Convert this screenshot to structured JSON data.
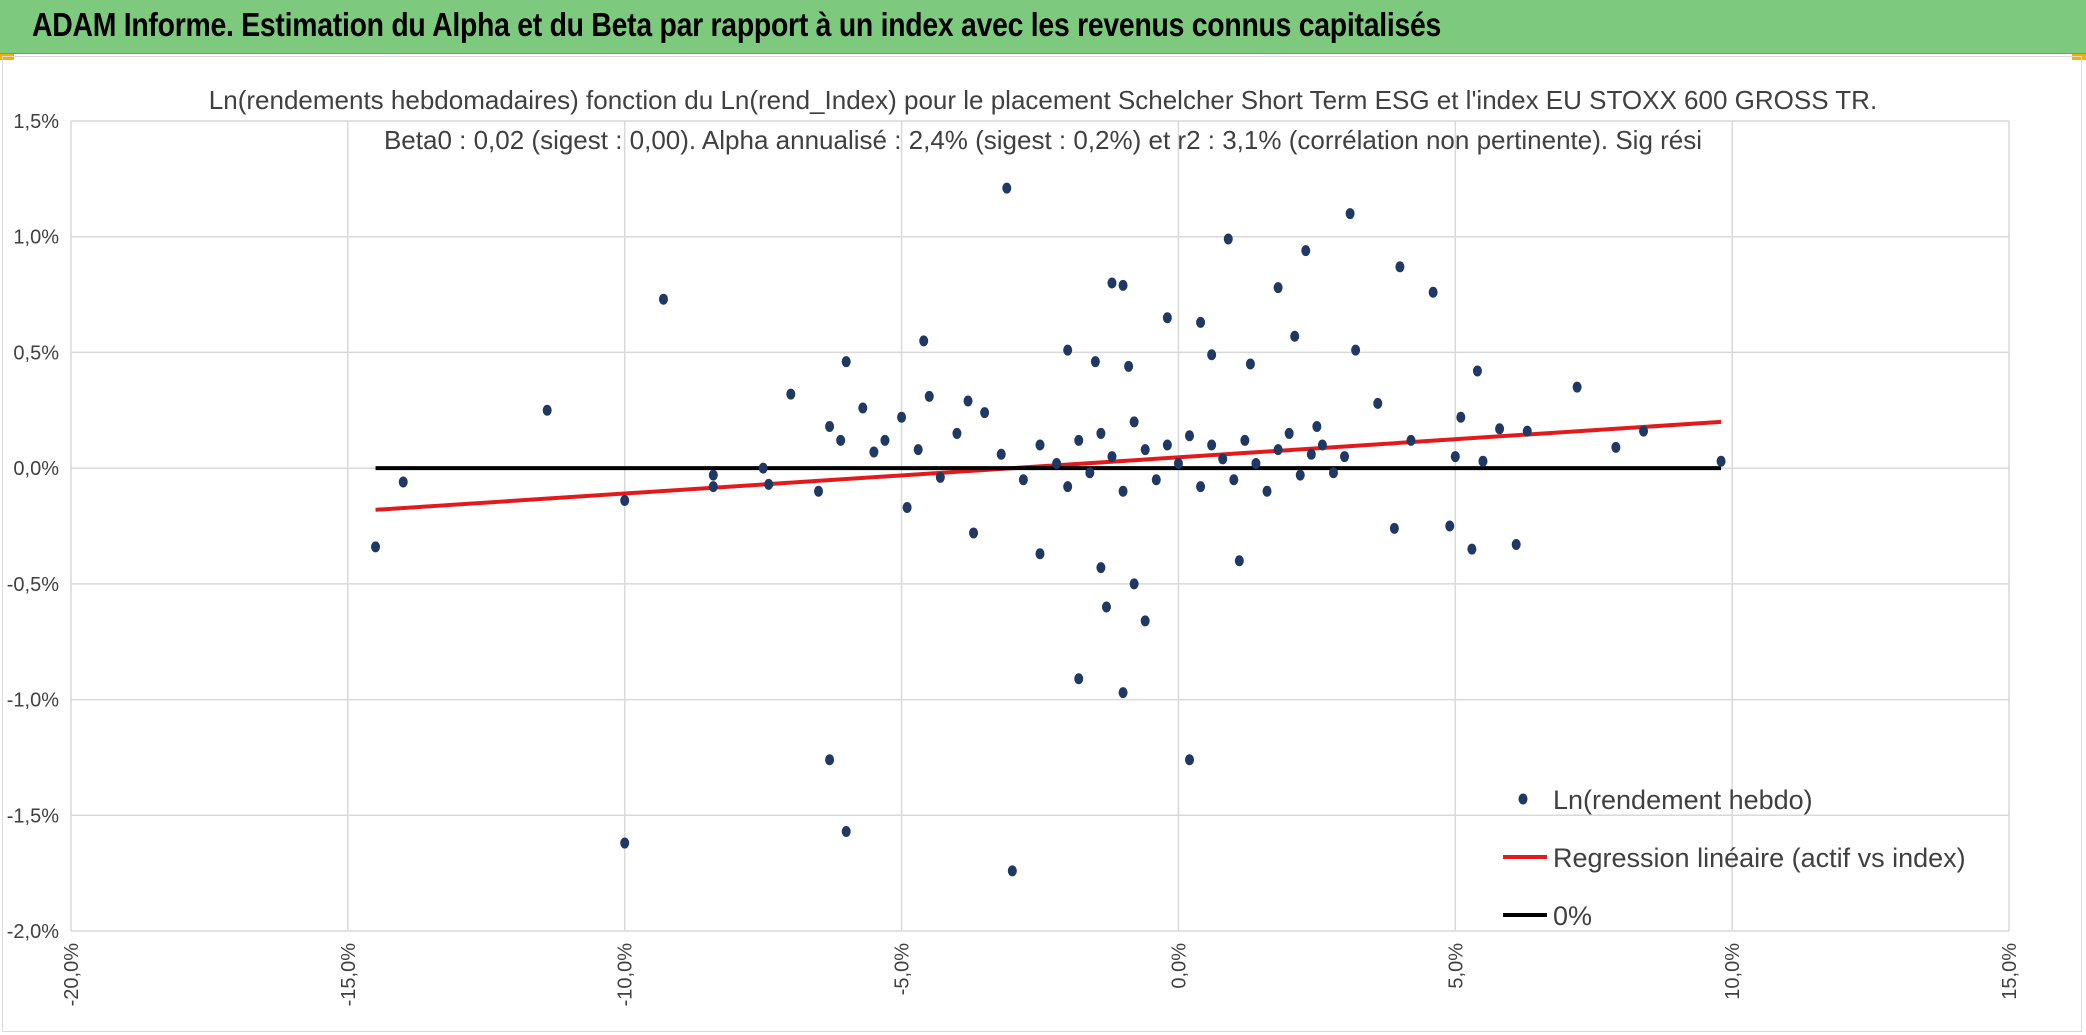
{
  "header": {
    "title": "ADAM Informe. Estimation du Alpha et du Beta par rapport à un index avec les revenus connus capitalisés"
  },
  "colors": {
    "header_bg": "#7dc97e",
    "points": "#1f3864",
    "regression": "#e31a1c",
    "zero_line": "#000000",
    "grid": "#d9d9d9",
    "accent_corners": "#f0b400"
  },
  "chart_data": {
    "type": "scatter",
    "title_line1": "Ln(rendements hebdomadaires) fonction du Ln(rend_Index) pour le placement Schelcher Short Term ESG  et l'index EU STOXX 600 GROSS TR.",
    "title_line2": "Beta0 : 0,02 (sigest : 0,00). Alpha annualisé : 2,4% (sigest : 0,2%) et r2 : 3,1% (corrélation non pertinente). Sig rési",
    "xlim": [
      -20,
      15
    ],
    "ylim": [
      -2.0,
      1.5
    ],
    "x_ticks": [
      "-20,0%",
      "-15,0%",
      "-10,0%",
      "-5,0%",
      "0,0%",
      "5,0%",
      "10,0%",
      "15,0%"
    ],
    "y_ticks": [
      "1,5%",
      "1,0%",
      "0,5%",
      "0,0%",
      "-0,5%",
      "-1,0%",
      "-1,5%",
      "-2,0%"
    ],
    "grid": true,
    "legend_position": "bottom-right",
    "series": [
      {
        "name": "Ln(rendement hebdo)",
        "kind": "scatter",
        "note": "approximate subset read from the figure; dense cluster near origin is sampled",
        "points": [
          [
            -14.5,
            -0.34
          ],
          [
            -14.0,
            -0.06
          ],
          [
            -11.4,
            0.25
          ],
          [
            -10.0,
            -0.14
          ],
          [
            -10.0,
            -1.62
          ],
          [
            -9.3,
            0.73
          ],
          [
            -8.4,
            -0.03
          ],
          [
            -8.4,
            -0.08
          ],
          [
            -7.5,
            0.0
          ],
          [
            -7.4,
            -0.07
          ],
          [
            -7.0,
            0.32
          ],
          [
            -6.5,
            -0.1
          ],
          [
            -6.3,
            0.18
          ],
          [
            -6.3,
            -1.26
          ],
          [
            -6.1,
            0.12
          ],
          [
            -6.0,
            0.46
          ],
          [
            -6.0,
            -1.57
          ],
          [
            -5.7,
            0.26
          ],
          [
            -5.5,
            0.07
          ],
          [
            -5.3,
            0.12
          ],
          [
            -5.0,
            0.22
          ],
          [
            -4.9,
            -0.17
          ],
          [
            -4.7,
            0.08
          ],
          [
            -4.6,
            0.55
          ],
          [
            -4.5,
            0.31
          ],
          [
            -4.3,
            -0.04
          ],
          [
            -4.0,
            0.15
          ],
          [
            -3.8,
            0.29
          ],
          [
            -3.7,
            -0.28
          ],
          [
            -3.5,
            0.24
          ],
          [
            -3.1,
            1.21
          ],
          [
            -3.0,
            -1.74
          ],
          [
            -2.5,
            -0.37
          ],
          [
            -2.0,
            0.51
          ],
          [
            -1.8,
            -0.91
          ],
          [
            -1.5,
            0.46
          ],
          [
            -1.4,
            -0.43
          ],
          [
            -1.3,
            -0.6
          ],
          [
            -1.2,
            0.8
          ],
          [
            -1.0,
            0.79
          ],
          [
            -0.9,
            0.44
          ],
          [
            -1.0,
            -0.97
          ],
          [
            -0.8,
            -0.5
          ],
          [
            -0.6,
            -0.66
          ],
          [
            -0.2,
            0.65
          ],
          [
            0.2,
            -1.26
          ],
          [
            0.4,
            0.63
          ],
          [
            0.6,
            0.49
          ],
          [
            0.9,
            0.99
          ],
          [
            1.1,
            -0.4
          ],
          [
            1.3,
            0.45
          ],
          [
            1.8,
            0.78
          ],
          [
            2.1,
            0.57
          ],
          [
            2.3,
            0.94
          ],
          [
            2.5,
            0.18
          ],
          [
            3.1,
            1.1
          ],
          [
            3.2,
            0.51
          ],
          [
            3.6,
            0.28
          ],
          [
            3.9,
            -0.26
          ],
          [
            4.0,
            0.87
          ],
          [
            4.2,
            0.12
          ],
          [
            4.6,
            0.76
          ],
          [
            4.9,
            -0.25
          ],
          [
            5.0,
            0.05
          ],
          [
            5.1,
            0.22
          ],
          [
            5.3,
            -0.35
          ],
          [
            5.4,
            0.42
          ],
          [
            5.5,
            0.03
          ],
          [
            5.8,
            0.17
          ],
          [
            6.1,
            -0.33
          ],
          [
            6.3,
            0.16
          ],
          [
            7.2,
            0.35
          ],
          [
            7.9,
            0.09
          ],
          [
            8.4,
            0.16
          ],
          [
            9.8,
            0.03
          ],
          [
            -3.2,
            0.06
          ],
          [
            -2.8,
            -0.05
          ],
          [
            -2.5,
            0.1
          ],
          [
            -2.2,
            0.02
          ],
          [
            -2.0,
            -0.08
          ],
          [
            -1.8,
            0.12
          ],
          [
            -1.6,
            -0.02
          ],
          [
            -1.4,
            0.15
          ],
          [
            -1.2,
            0.05
          ],
          [
            -1.0,
            -0.1
          ],
          [
            -0.8,
            0.2
          ],
          [
            -0.6,
            0.08
          ],
          [
            -0.4,
            -0.05
          ],
          [
            -0.2,
            0.1
          ],
          [
            0.0,
            0.02
          ],
          [
            0.2,
            0.14
          ],
          [
            0.4,
            -0.08
          ],
          [
            0.6,
            0.1
          ],
          [
            0.8,
            0.04
          ],
          [
            1.0,
            -0.05
          ],
          [
            1.2,
            0.12
          ],
          [
            1.4,
            0.02
          ],
          [
            1.6,
            -0.1
          ],
          [
            1.8,
            0.08
          ],
          [
            2.0,
            0.15
          ],
          [
            2.2,
            -0.03
          ],
          [
            2.4,
            0.06
          ],
          [
            2.6,
            0.1
          ],
          [
            2.8,
            -0.02
          ],
          [
            3.0,
            0.05
          ]
        ]
      },
      {
        "name": "Regression linéaire (actif vs index)",
        "kind": "line",
        "x": [
          -14.5,
          9.8
        ],
        "y": [
          -0.18,
          0.2
        ]
      },
      {
        "name": "0%",
        "kind": "line",
        "x": [
          -14.5,
          9.8
        ],
        "y": [
          0.0,
          0.0
        ]
      }
    ]
  }
}
